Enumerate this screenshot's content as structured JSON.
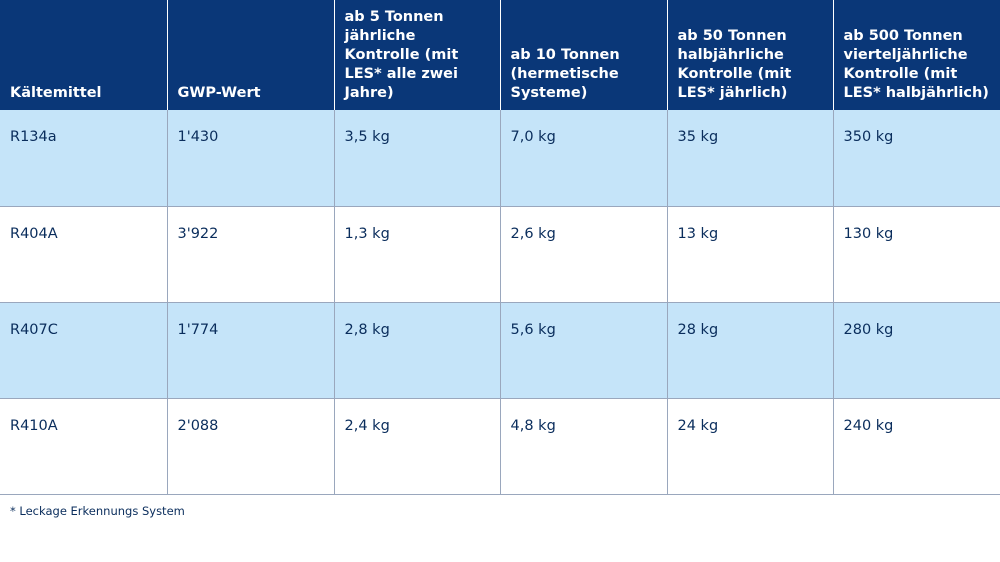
{
  "table": {
    "headers": [
      "Kältemittel",
      "GWP-Wert",
      "ab 5 Tonnen jährliche Kontrolle (mit LES* alle zwei Jahre)",
      "ab 10 Tonnen (hermetische Systeme)",
      "ab 50 Tonnen halbjährliche Kontrolle (mit LES* jährlich)",
      "ab 500 Tonnen vierteljährliche Kontrolle (mit LES* halbjährlich)"
    ],
    "rows": [
      [
        "R134a",
        "1'430",
        "3,5 kg",
        "7,0 kg",
        "35 kg",
        "350 kg"
      ],
      [
        "R404A",
        "3'922",
        "1,3 kg",
        "2,6 kg",
        "13 kg",
        "130 kg"
      ],
      [
        "R407C",
        "1'774",
        "2,8 kg",
        "5,6 kg",
        "28 kg",
        "280 kg"
      ],
      [
        "R410A",
        "2'088",
        "2,4 kg",
        "4,8 kg",
        "24 kg",
        "240 kg"
      ]
    ]
  },
  "footnote": "* Leckage Erkennungs System",
  "colors": {
    "header_bg": "#0a3778",
    "row_shaded": "#c5e4f9",
    "text": "#0a2d5c"
  }
}
